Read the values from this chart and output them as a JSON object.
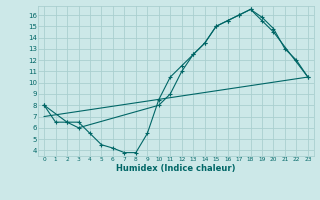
{
  "xlabel": "Humidex (Indice chaleur)",
  "ylabel": "",
  "bg_color": "#cce8e8",
  "grid_color": "#aacfcf",
  "line_color": "#006666",
  "xlim": [
    -0.5,
    23.5
  ],
  "ylim": [
    3.5,
    16.8
  ],
  "xticks": [
    0,
    1,
    2,
    3,
    4,
    5,
    6,
    7,
    8,
    9,
    10,
    11,
    12,
    13,
    14,
    15,
    16,
    17,
    18,
    19,
    20,
    21,
    22,
    23
  ],
  "yticks": [
    4,
    5,
    6,
    7,
    8,
    9,
    10,
    11,
    12,
    13,
    14,
    15,
    16
  ],
  "line1_x": [
    0,
    1,
    2,
    3,
    4,
    5,
    6,
    7,
    8,
    9,
    10,
    11,
    12,
    13,
    14,
    15,
    16,
    17,
    18,
    19,
    20,
    21,
    22,
    23
  ],
  "line1_y": [
    8.0,
    6.5,
    6.5,
    6.5,
    5.5,
    4.5,
    4.2,
    3.8,
    3.8,
    5.5,
    8.5,
    10.5,
    11.5,
    12.5,
    13.5,
    15.0,
    15.5,
    16.0,
    16.5,
    15.8,
    14.8,
    13.0,
    12.0,
    10.5
  ],
  "line2_x": [
    0,
    2,
    3,
    10,
    11,
    12,
    13,
    14,
    15,
    16,
    17,
    18,
    19,
    20,
    23
  ],
  "line2_y": [
    8.0,
    6.5,
    6.0,
    8.0,
    9.0,
    11.0,
    12.5,
    13.5,
    15.0,
    15.5,
    16.0,
    16.5,
    15.5,
    14.5,
    10.5
  ],
  "line3_x": [
    0,
    23
  ],
  "line3_y": [
    7.0,
    10.5
  ]
}
